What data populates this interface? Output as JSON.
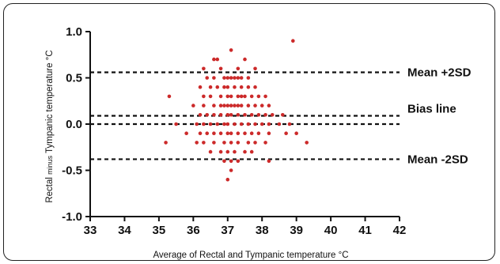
{
  "chart_data": {
    "type": "scatter",
    "title": "",
    "xlabel": "Average of Rectal and Tympanic temperature °C",
    "ylabel_parts": [
      "Rectal ",
      "minus",
      " Tympanic temperature °C"
    ],
    "xlim": [
      33,
      42
    ],
    "ylim": [
      -1.0,
      1.0
    ],
    "x_ticks": [
      33,
      34,
      35,
      36,
      37,
      38,
      39,
      40,
      41,
      42
    ],
    "y_ticks": [
      -1.0,
      -0.5,
      0.0,
      0.5,
      1.0
    ],
    "y_tick_labels": [
      "-1.0",
      "-0.5",
      "0.0",
      "0.5",
      "1.0"
    ],
    "grid": false,
    "point_color": "#cc2a2a",
    "reference_lines": [
      {
        "label": "Mean +2SD",
        "y": 0.56
      },
      {
        "label": "Bias line",
        "y": 0.09
      },
      {
        "label": "",
        "y": 0.0
      },
      {
        "label": "Mean -2SD",
        "y": -0.38
      }
    ],
    "series": [
      {
        "points": [
          [
            38.9,
            0.9
          ],
          [
            37.1,
            0.8
          ],
          [
            36.6,
            0.7
          ],
          [
            36.7,
            0.7
          ],
          [
            37.5,
            0.7
          ],
          [
            36.3,
            0.6
          ],
          [
            36.8,
            0.6
          ],
          [
            37.3,
            0.6
          ],
          [
            37.8,
            0.6
          ],
          [
            36.4,
            0.5
          ],
          [
            36.6,
            0.5
          ],
          [
            36.9,
            0.5
          ],
          [
            37.0,
            0.5
          ],
          [
            37.1,
            0.5
          ],
          [
            37.2,
            0.5
          ],
          [
            37.3,
            0.5
          ],
          [
            37.4,
            0.5
          ],
          [
            37.6,
            0.5
          ],
          [
            36.2,
            0.4
          ],
          [
            36.5,
            0.4
          ],
          [
            36.7,
            0.4
          ],
          [
            36.9,
            0.4
          ],
          [
            37.0,
            0.4
          ],
          [
            37.2,
            0.4
          ],
          [
            37.4,
            0.4
          ],
          [
            37.6,
            0.4
          ],
          [
            37.8,
            0.4
          ],
          [
            35.3,
            0.3
          ],
          [
            36.3,
            0.3
          ],
          [
            36.5,
            0.3
          ],
          [
            36.8,
            0.3
          ],
          [
            37.0,
            0.3
          ],
          [
            37.1,
            0.3
          ],
          [
            37.3,
            0.3
          ],
          [
            37.4,
            0.3
          ],
          [
            37.5,
            0.3
          ],
          [
            37.7,
            0.3
          ],
          [
            37.9,
            0.3
          ],
          [
            38.1,
            0.3
          ],
          [
            36.0,
            0.2
          ],
          [
            36.3,
            0.2
          ],
          [
            36.6,
            0.2
          ],
          [
            36.8,
            0.2
          ],
          [
            36.9,
            0.2
          ],
          [
            37.0,
            0.2
          ],
          [
            37.1,
            0.2
          ],
          [
            37.2,
            0.2
          ],
          [
            37.3,
            0.2
          ],
          [
            37.4,
            0.2
          ],
          [
            37.6,
            0.2
          ],
          [
            37.8,
            0.2
          ],
          [
            38.0,
            0.2
          ],
          [
            38.2,
            0.2
          ],
          [
            36.2,
            0.1
          ],
          [
            36.4,
            0.1
          ],
          [
            36.6,
            0.1
          ],
          [
            36.8,
            0.1
          ],
          [
            37.0,
            0.1
          ],
          [
            37.1,
            0.1
          ],
          [
            37.3,
            0.1
          ],
          [
            37.5,
            0.1
          ],
          [
            37.7,
            0.1
          ],
          [
            37.9,
            0.1
          ],
          [
            38.1,
            0.1
          ],
          [
            38.3,
            0.1
          ],
          [
            38.6,
            0.1
          ],
          [
            35.5,
            0.0
          ],
          [
            36.1,
            0.0
          ],
          [
            36.3,
            0.0
          ],
          [
            36.5,
            0.0
          ],
          [
            36.7,
            0.0
          ],
          [
            36.9,
            0.0
          ],
          [
            37.0,
            0.0
          ],
          [
            37.2,
            0.0
          ],
          [
            37.4,
            0.0
          ],
          [
            37.6,
            0.0
          ],
          [
            37.8,
            0.0
          ],
          [
            38.0,
            0.0
          ],
          [
            38.2,
            0.0
          ],
          [
            38.5,
            0.0
          ],
          [
            38.8,
            0.0
          ],
          [
            35.8,
            -0.1
          ],
          [
            36.2,
            -0.1
          ],
          [
            36.4,
            -0.1
          ],
          [
            36.6,
            -0.1
          ],
          [
            36.8,
            -0.1
          ],
          [
            37.0,
            -0.1
          ],
          [
            37.1,
            -0.1
          ],
          [
            37.3,
            -0.1
          ],
          [
            37.5,
            -0.1
          ],
          [
            37.7,
            -0.1
          ],
          [
            37.9,
            -0.1
          ],
          [
            38.2,
            -0.1
          ],
          [
            38.7,
            -0.1
          ],
          [
            39.0,
            -0.1
          ],
          [
            35.2,
            -0.2
          ],
          [
            36.1,
            -0.2
          ],
          [
            36.3,
            -0.2
          ],
          [
            36.6,
            -0.2
          ],
          [
            36.9,
            -0.2
          ],
          [
            37.1,
            -0.2
          ],
          [
            37.3,
            -0.2
          ],
          [
            37.6,
            -0.2
          ],
          [
            37.8,
            -0.2
          ],
          [
            38.1,
            -0.2
          ],
          [
            39.3,
            -0.2
          ],
          [
            36.5,
            -0.3
          ],
          [
            36.8,
            -0.3
          ],
          [
            37.0,
            -0.3
          ],
          [
            37.2,
            -0.3
          ],
          [
            37.5,
            -0.3
          ],
          [
            37.7,
            -0.3
          ],
          [
            36.9,
            -0.4
          ],
          [
            37.1,
            -0.4
          ],
          [
            37.3,
            -0.4
          ],
          [
            38.2,
            -0.4
          ],
          [
            37.1,
            -0.5
          ],
          [
            37.0,
            -0.6
          ]
        ]
      }
    ]
  }
}
